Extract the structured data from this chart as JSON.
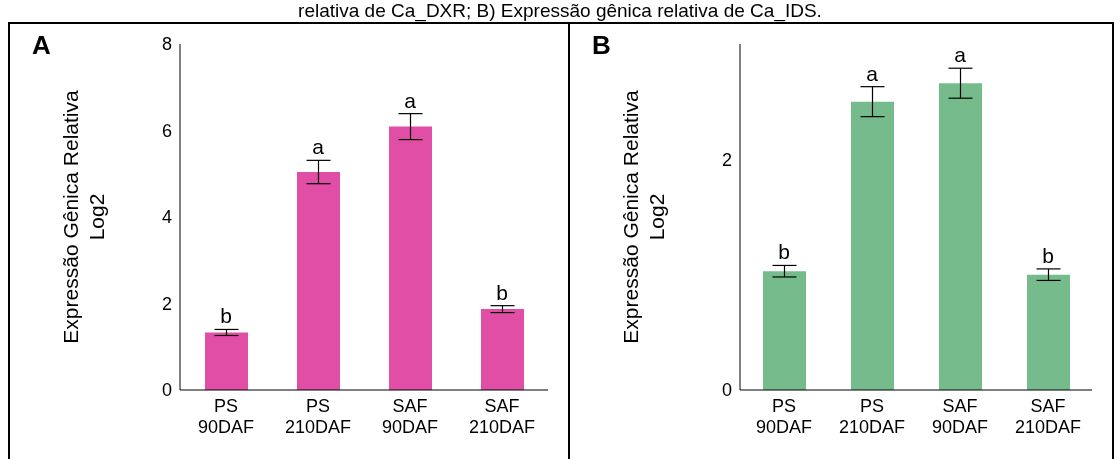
{
  "chart_data": [
    {
      "type": "bar",
      "annotations": [
        "relativa de Ca_DXR; B) Expressão gênica relativa de Ca_IDS.",
        "A",
        {
          "text": "b",
          "x": "PS 90DAF",
          "y": 1.4
        },
        {
          "text": "a",
          "x": "PS 210DAF",
          "y": 5.31
        },
        {
          "text": "a",
          "x": "SAF 90DAF",
          "y": 6.39
        },
        {
          "text": "b",
          "x": "SAF 210DAF",
          "y": 1.95
        }
      ],
      "ylabel": "Expressão Gênica Relativa Log2",
      "categories": [
        "PS 90DAF",
        "PS 210DAF",
        "SAF 90DAF",
        "SAF 210DAF"
      ],
      "values": [
        1.33,
        5.04,
        6.09,
        1.87
      ],
      "errors": [
        0.07,
        0.27,
        0.3,
        0.08
      ],
      "color": "#e04ea6",
      "ylim": [
        0,
        8
      ],
      "yticks": [
        0,
        2,
        4,
        6,
        8
      ]
    },
    {
      "type": "bar",
      "annotations": [
        "B",
        {
          "text": "b",
          "x": "PS 90DAF",
          "y": 1.08
        },
        {
          "text": "a",
          "x": "PS 210DAF",
          "y": 2.63
        },
        {
          "text": "a",
          "x": "SAF 90DAF",
          "y": 2.79
        },
        {
          "text": "b",
          "x": "SAF 210DAF",
          "y": 1.05
        }
      ],
      "ylabel": "Expressão Gênica Relativa Log2",
      "categories": [
        "PS 90DAF",
        "PS 210DAF",
        "SAF 90DAF",
        "SAF 210DAF"
      ],
      "values": [
        1.03,
        2.5,
        2.66,
        1.0
      ],
      "errors": [
        0.05,
        0.13,
        0.13,
        0.05
      ],
      "color": "#76bb8b",
      "ylim": [
        0,
        3
      ],
      "yticks": [
        0,
        2
      ]
    }
  ]
}
